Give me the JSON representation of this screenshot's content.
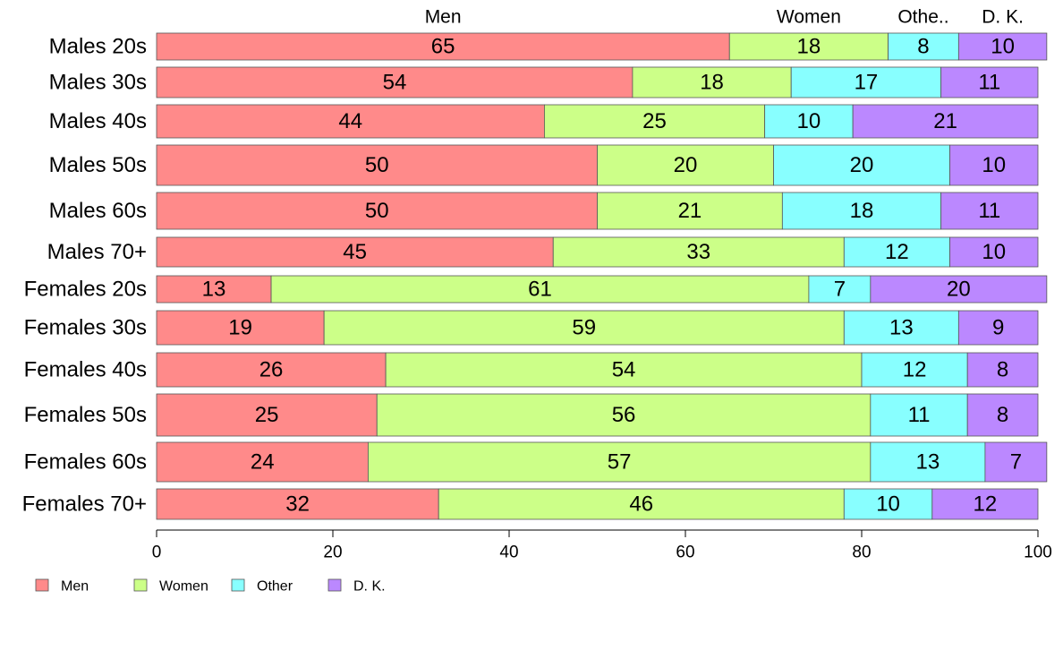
{
  "chart_data": {
    "type": "bar",
    "orientation": "horizontal",
    "stacked": true,
    "categories": [
      "Males 20s",
      "Males 30s",
      "Males 40s",
      "Males 50s",
      "Males 60s",
      "Males 70+",
      "Females 20s",
      "Females 30s",
      "Females 40s",
      "Females 50s",
      "Females 60s",
      "Females 70+"
    ],
    "series": [
      {
        "name": "Men",
        "color": "#ff8a8a",
        "values": [
          65,
          54,
          44,
          50,
          50,
          45,
          13,
          19,
          26,
          25,
          24,
          32
        ]
      },
      {
        "name": "Women",
        "color": "#ccff88",
        "values": [
          18,
          18,
          25,
          20,
          21,
          33,
          61,
          59,
          54,
          56,
          57,
          46
        ]
      },
      {
        "name": "Other",
        "color": "#88ffff",
        "values": [
          8,
          17,
          10,
          20,
          18,
          12,
          7,
          13,
          12,
          11,
          13,
          10
        ]
      },
      {
        "name": "D. K.",
        "color": "#bb88ff",
        "values": [
          10,
          11,
          21,
          10,
          11,
          10,
          20,
          9,
          8,
          8,
          7,
          12
        ]
      }
    ],
    "top_labels": [
      "Men",
      "Women",
      "Othe..",
      "D. K."
    ],
    "xlim": [
      0,
      100
    ],
    "xticks": [
      0,
      20,
      40,
      60,
      80,
      100
    ],
    "grid": false,
    "legend_position": "bottom-left"
  }
}
